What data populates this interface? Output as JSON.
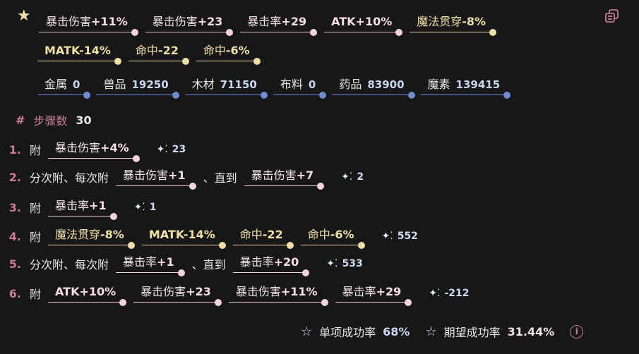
{
  "icons": {
    "favorite": "star-icon",
    "copy": "copy-icon",
    "info": "info-icon",
    "sparkle": "sparkle-icon"
  },
  "colors": {
    "pink": "#f6d3de",
    "yellow": "#f0dfa6",
    "blue": "#6f8bd0",
    "accent": "#c97d99",
    "background": "#171717"
  },
  "target_stats": [
    {
      "label": "暴击伤害",
      "value": "+11%",
      "color": "pink"
    },
    {
      "label": "暴击伤害",
      "value": "+23",
      "color": "pink"
    },
    {
      "label": "暴击率",
      "value": "+29",
      "color": "pink"
    },
    {
      "label": "",
      "value": "ATK+10%",
      "color": "pink"
    },
    {
      "label": "魔法贯穿",
      "value": "-8%",
      "color": "yellow"
    },
    {
      "label": "",
      "value": "MATK-14%",
      "color": "yellow"
    },
    {
      "label": "命中",
      "value": "-22",
      "color": "yellow"
    },
    {
      "label": "命中",
      "value": "-6%",
      "color": "yellow"
    }
  ],
  "materials": [
    {
      "label": "金属",
      "value": "0"
    },
    {
      "label": "兽品",
      "value": "19250"
    },
    {
      "label": "木材",
      "value": "71150"
    },
    {
      "label": "布料",
      "value": "0"
    },
    {
      "label": "药品",
      "value": "83900"
    },
    {
      "label": "魔素",
      "value": "139415"
    }
  ],
  "steps_header": {
    "hash": "#",
    "label": "步骤数",
    "value": "30"
  },
  "steps": [
    {
      "num": "1.",
      "text": "附",
      "chips": [
        {
          "label": "暴击伤害",
          "value": "+4%",
          "color": "pink"
        }
      ],
      "sparkle": "23"
    },
    {
      "num": "2.",
      "text": "分次附、每次附",
      "chips": [
        {
          "label": "暴击伤害",
          "value": "+1",
          "color": "pink"
        }
      ],
      "until": "、直到",
      "until_chip": {
        "label": "暴击伤害",
        "value": "+7",
        "color": "pink"
      },
      "sparkle": "2"
    },
    {
      "num": "3.",
      "text": "附",
      "chips": [
        {
          "label": "暴击率",
          "value": "+1",
          "color": "pink"
        }
      ],
      "sparkle": "1"
    },
    {
      "num": "4.",
      "text": "附",
      "chips": [
        {
          "label": "魔法贯穿",
          "value": "-8%",
          "color": "yellow"
        },
        {
          "label": "",
          "value": "MATK-14%",
          "color": "yellow"
        },
        {
          "label": "命中",
          "value": "-22",
          "color": "yellow"
        },
        {
          "label": "命中",
          "value": "-6%",
          "color": "yellow"
        }
      ],
      "sparkle": "552"
    },
    {
      "num": "5.",
      "text": "分次附、每次附",
      "chips": [
        {
          "label": "暴击率",
          "value": "+1",
          "color": "pink"
        }
      ],
      "until": "、直到",
      "until_chip": {
        "label": "暴击率",
        "value": "+20",
        "color": "pink"
      },
      "sparkle": "533"
    },
    {
      "num": "6.",
      "text": "附",
      "chips": [
        {
          "label": "",
          "value": "ATK+10%",
          "color": "pink"
        },
        {
          "label": "暴击伤害",
          "value": "+23",
          "color": "pink"
        },
        {
          "label": "暴击伤害",
          "value": "+11%",
          "color": "pink"
        },
        {
          "label": "暴击率",
          "value": "+29",
          "color": "pink"
        }
      ],
      "sparkle": "-212"
    }
  ],
  "footer": {
    "single_label": "单项成功率",
    "single_value": "68%",
    "expected_label": "期望成功率",
    "expected_value": "31.44%"
  }
}
